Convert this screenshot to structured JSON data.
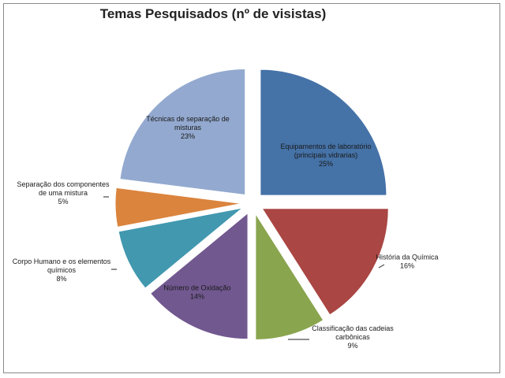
{
  "chart_data": {
    "type": "pie",
    "title": "Temas Pesquisados (nº de visistas)",
    "exploded": true,
    "start_angle": "12 o'clock, clockwise",
    "slices": [
      {
        "label_lines": [
          "Equipamentos de laboratório",
          "(principais vidrarias)"
        ],
        "pct_label": "25%",
        "value": 25,
        "color": "#4572A7"
      },
      {
        "label_lines": [
          "História da Química"
        ],
        "pct_label": "16%",
        "value": 16,
        "color": "#AA4643"
      },
      {
        "label_lines": [
          "Classificação das cadeias",
          "carbônicas"
        ],
        "pct_label": "9%",
        "value": 9,
        "color": "#89A54E"
      },
      {
        "label_lines": [
          "Número de Oxidação"
        ],
        "pct_label": "14%",
        "value": 14,
        "color": "#71588F"
      },
      {
        "label_lines": [
          "Corpo Humano e os elementos",
          "químicos"
        ],
        "pct_label": "8%",
        "value": 8,
        "color": "#4198AF"
      },
      {
        "label_lines": [
          "Separação dos componentes",
          "de uma mistura"
        ],
        "pct_label": "5%",
        "value": 5,
        "color": "#DB843D"
      },
      {
        "label_lines": [
          "Técnicas de separação de",
          "misturas"
        ],
        "pct_label": "23%",
        "value": 23,
        "color": "#93A9CF"
      }
    ]
  }
}
